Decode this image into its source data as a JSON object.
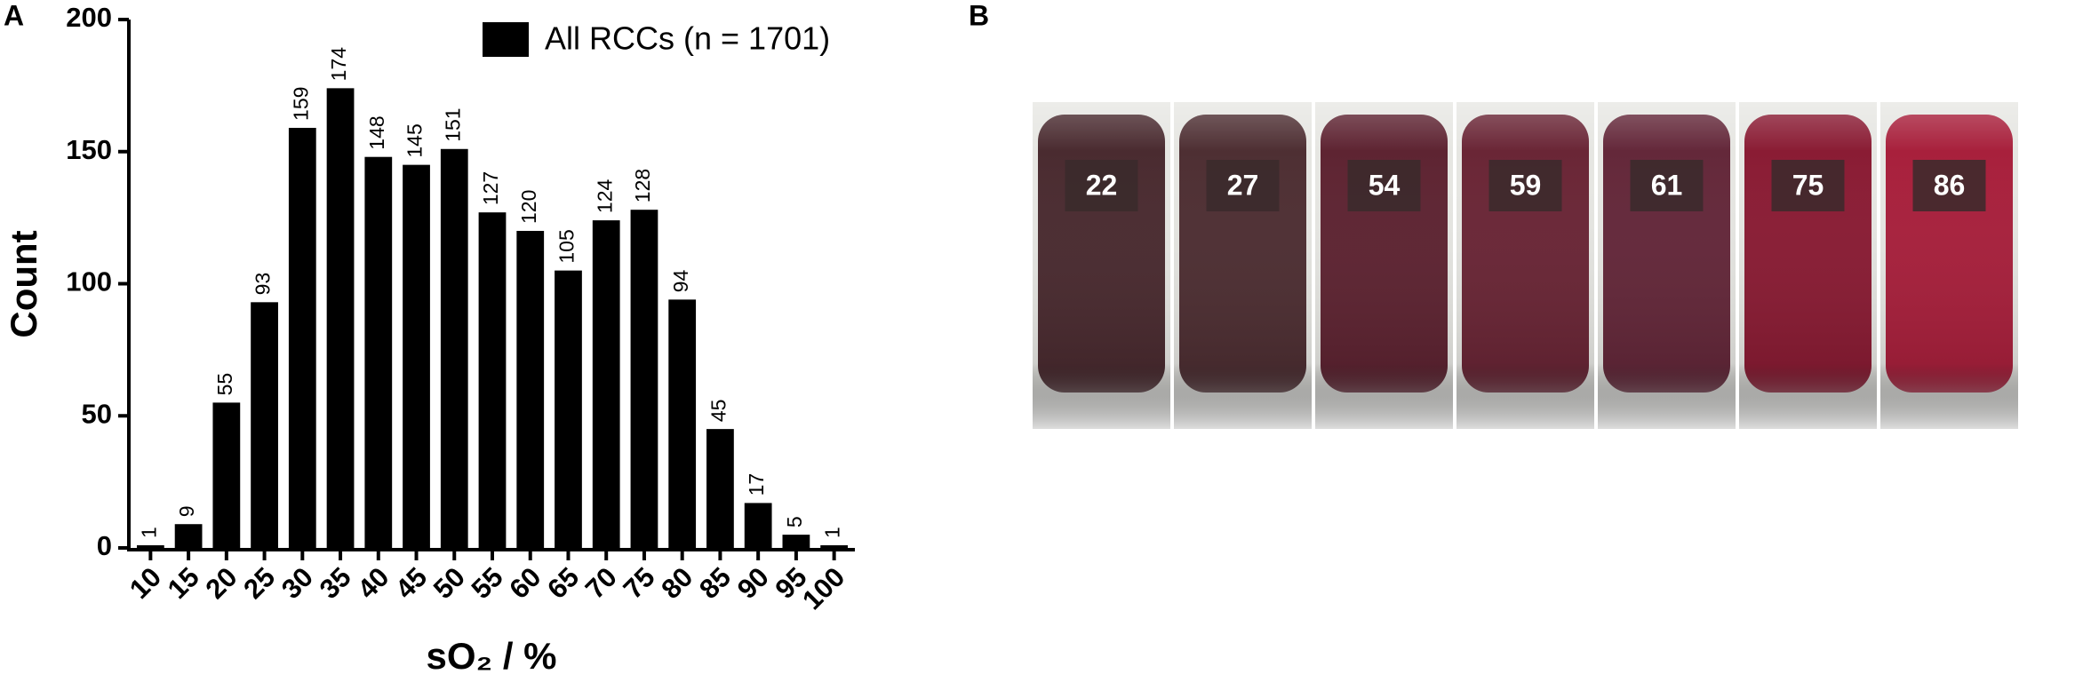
{
  "panel_labels": [
    "A",
    "B"
  ],
  "chart_data": {
    "type": "bar",
    "categories": [
      "10",
      "15",
      "20",
      "25",
      "30",
      "35",
      "40",
      "45",
      "50",
      "55",
      "60",
      "65",
      "70",
      "75",
      "80",
      "85",
      "90",
      "95",
      "100"
    ],
    "series": [
      {
        "name": "All RCCs (n = 1701)",
        "color": "#000000",
        "values": [
          1,
          9,
          55,
          93,
          159,
          174,
          148,
          145,
          151,
          127,
          120,
          105,
          124,
          128,
          94,
          45,
          17,
          5,
          1
        ]
      }
    ],
    "y_label": "Count",
    "x_label": "sO₂ / %",
    "ylim": [
      0,
      200
    ],
    "yticks": [
      0,
      50,
      100,
      150,
      200
    ],
    "grid": false,
    "legend": "top-right"
  },
  "photo_labels": [
    22,
    27,
    54,
    59,
    61,
    75,
    86
  ]
}
